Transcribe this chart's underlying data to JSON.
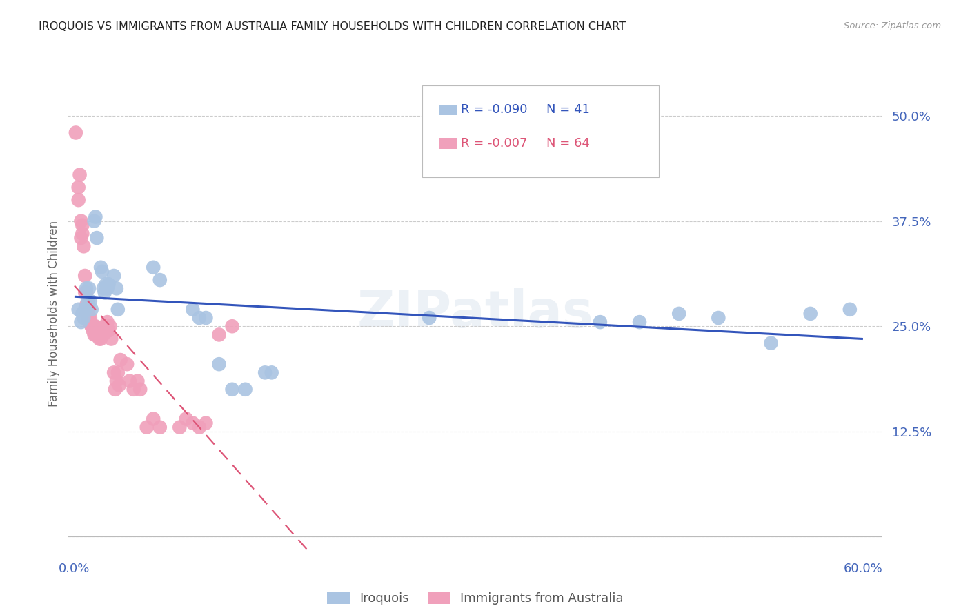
{
  "title": "IROQUOIS VS IMMIGRANTS FROM AUSTRALIA FAMILY HOUSEHOLDS WITH CHILDREN CORRELATION CHART",
  "source": "Source: ZipAtlas.com",
  "ylabel": "Family Households with Children",
  "legend_blue_R": "-0.090",
  "legend_blue_N": "41",
  "legend_pink_R": "-0.007",
  "legend_pink_N": "64",
  "blue_color": "#aac4e2",
  "pink_color": "#f0a0bb",
  "blue_line_color": "#3355bb",
  "pink_line_color": "#dd5577",
  "tick_color": "#4466bb",
  "grid_color": "#cccccc",
  "blue_scatter": [
    [
      0.003,
      0.27
    ],
    [
      0.005,
      0.255
    ],
    [
      0.006,
      0.265
    ],
    [
      0.007,
      0.26
    ],
    [
      0.008,
      0.27
    ],
    [
      0.009,
      0.295
    ],
    [
      0.01,
      0.28
    ],
    [
      0.011,
      0.295
    ],
    [
      0.012,
      0.28
    ],
    [
      0.013,
      0.27
    ],
    [
      0.015,
      0.375
    ],
    [
      0.016,
      0.38
    ],
    [
      0.017,
      0.355
    ],
    [
      0.02,
      0.32
    ],
    [
      0.021,
      0.315
    ],
    [
      0.022,
      0.295
    ],
    [
      0.023,
      0.29
    ],
    [
      0.024,
      0.3
    ],
    [
      0.025,
      0.295
    ],
    [
      0.026,
      0.3
    ],
    [
      0.03,
      0.31
    ],
    [
      0.032,
      0.295
    ],
    [
      0.033,
      0.27
    ],
    [
      0.06,
      0.32
    ],
    [
      0.065,
      0.305
    ],
    [
      0.09,
      0.27
    ],
    [
      0.095,
      0.26
    ],
    [
      0.1,
      0.26
    ],
    [
      0.11,
      0.205
    ],
    [
      0.12,
      0.175
    ],
    [
      0.13,
      0.175
    ],
    [
      0.145,
      0.195
    ],
    [
      0.15,
      0.195
    ],
    [
      0.27,
      0.26
    ],
    [
      0.4,
      0.255
    ],
    [
      0.43,
      0.255
    ],
    [
      0.46,
      0.265
    ],
    [
      0.49,
      0.26
    ],
    [
      0.53,
      0.23
    ],
    [
      0.56,
      0.265
    ],
    [
      0.59,
      0.27
    ]
  ],
  "pink_scatter": [
    [
      0.001,
      0.48
    ],
    [
      0.003,
      0.415
    ],
    [
      0.003,
      0.4
    ],
    [
      0.004,
      0.43
    ],
    [
      0.005,
      0.375
    ],
    [
      0.005,
      0.355
    ],
    [
      0.006,
      0.37
    ],
    [
      0.006,
      0.36
    ],
    [
      0.007,
      0.345
    ],
    [
      0.008,
      0.31
    ],
    [
      0.008,
      0.29
    ],
    [
      0.009,
      0.29
    ],
    [
      0.009,
      0.275
    ],
    [
      0.009,
      0.265
    ],
    [
      0.01,
      0.27
    ],
    [
      0.01,
      0.265
    ],
    [
      0.01,
      0.26
    ],
    [
      0.011,
      0.26
    ],
    [
      0.011,
      0.255
    ],
    [
      0.011,
      0.255
    ],
    [
      0.012,
      0.26
    ],
    [
      0.012,
      0.255
    ],
    [
      0.013,
      0.25
    ],
    [
      0.013,
      0.25
    ],
    [
      0.014,
      0.25
    ],
    [
      0.014,
      0.245
    ],
    [
      0.015,
      0.25
    ],
    [
      0.015,
      0.24
    ],
    [
      0.016,
      0.25
    ],
    [
      0.016,
      0.24
    ],
    [
      0.017,
      0.245
    ],
    [
      0.018,
      0.24
    ],
    [
      0.019,
      0.235
    ],
    [
      0.02,
      0.235
    ],
    [
      0.02,
      0.24
    ],
    [
      0.021,
      0.24
    ],
    [
      0.022,
      0.24
    ],
    [
      0.023,
      0.25
    ],
    [
      0.024,
      0.245
    ],
    [
      0.025,
      0.255
    ],
    [
      0.026,
      0.245
    ],
    [
      0.027,
      0.25
    ],
    [
      0.028,
      0.235
    ],
    [
      0.03,
      0.195
    ],
    [
      0.031,
      0.175
    ],
    [
      0.032,
      0.185
    ],
    [
      0.033,
      0.195
    ],
    [
      0.034,
      0.18
    ],
    [
      0.035,
      0.21
    ],
    [
      0.04,
      0.205
    ],
    [
      0.042,
      0.185
    ],
    [
      0.045,
      0.175
    ],
    [
      0.048,
      0.185
    ],
    [
      0.05,
      0.175
    ],
    [
      0.055,
      0.13
    ],
    [
      0.06,
      0.14
    ],
    [
      0.065,
      0.13
    ],
    [
      0.08,
      0.13
    ],
    [
      0.085,
      0.14
    ],
    [
      0.09,
      0.135
    ],
    [
      0.095,
      0.13
    ],
    [
      0.1,
      0.135
    ],
    [
      0.11,
      0.24
    ],
    [
      0.12,
      0.25
    ]
  ],
  "xlim": [
    -0.005,
    0.615
  ],
  "ylim": [
    -0.02,
    0.55
  ],
  "xticks": [
    0.0,
    0.1,
    0.2,
    0.3,
    0.4,
    0.5,
    0.6
  ],
  "yticks": [
    0.0,
    0.125,
    0.25,
    0.375,
    0.5
  ],
  "title_fontsize": 11.5,
  "source_fontsize": 9.5,
  "tick_fontsize": 13,
  "ylabel_fontsize": 12
}
